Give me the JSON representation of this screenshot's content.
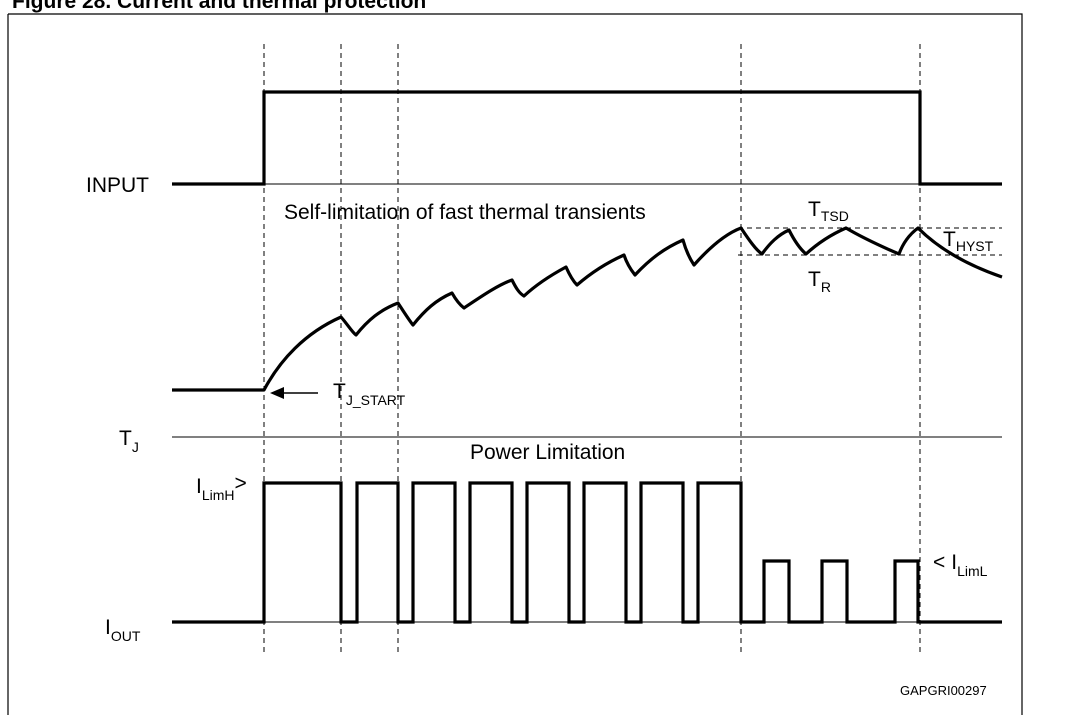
{
  "header_text": "Figure 28. Current and thermal protection",
  "labels": {
    "input": "INPUT",
    "tj_base": "T",
    "tj_sub": "J",
    "iout_base": "I",
    "iout_sub": "OUT",
    "self_limitation": "Self-limitation of  fast thermal transients",
    "power_limitation": "Power Limitation",
    "tj_start_base": "T",
    "tj_start_sub": "J_START",
    "ttsd_base": "T",
    "ttsd_sub": "TSD",
    "thyst_base": "T",
    "thyst_sub": "HYST",
    "tr_base": "T",
    "tr_sub": "R",
    "ilimh_base": "I",
    "ilimh_sub": "LimH",
    "ilimh_marker": ">",
    "iliml_marker": "<",
    "iliml_base": "I",
    "iliml_sub": "LimL",
    "figure_code": "GAPGRI00297"
  },
  "colors": {
    "line": "#000000",
    "background": "#ffffff"
  }
}
